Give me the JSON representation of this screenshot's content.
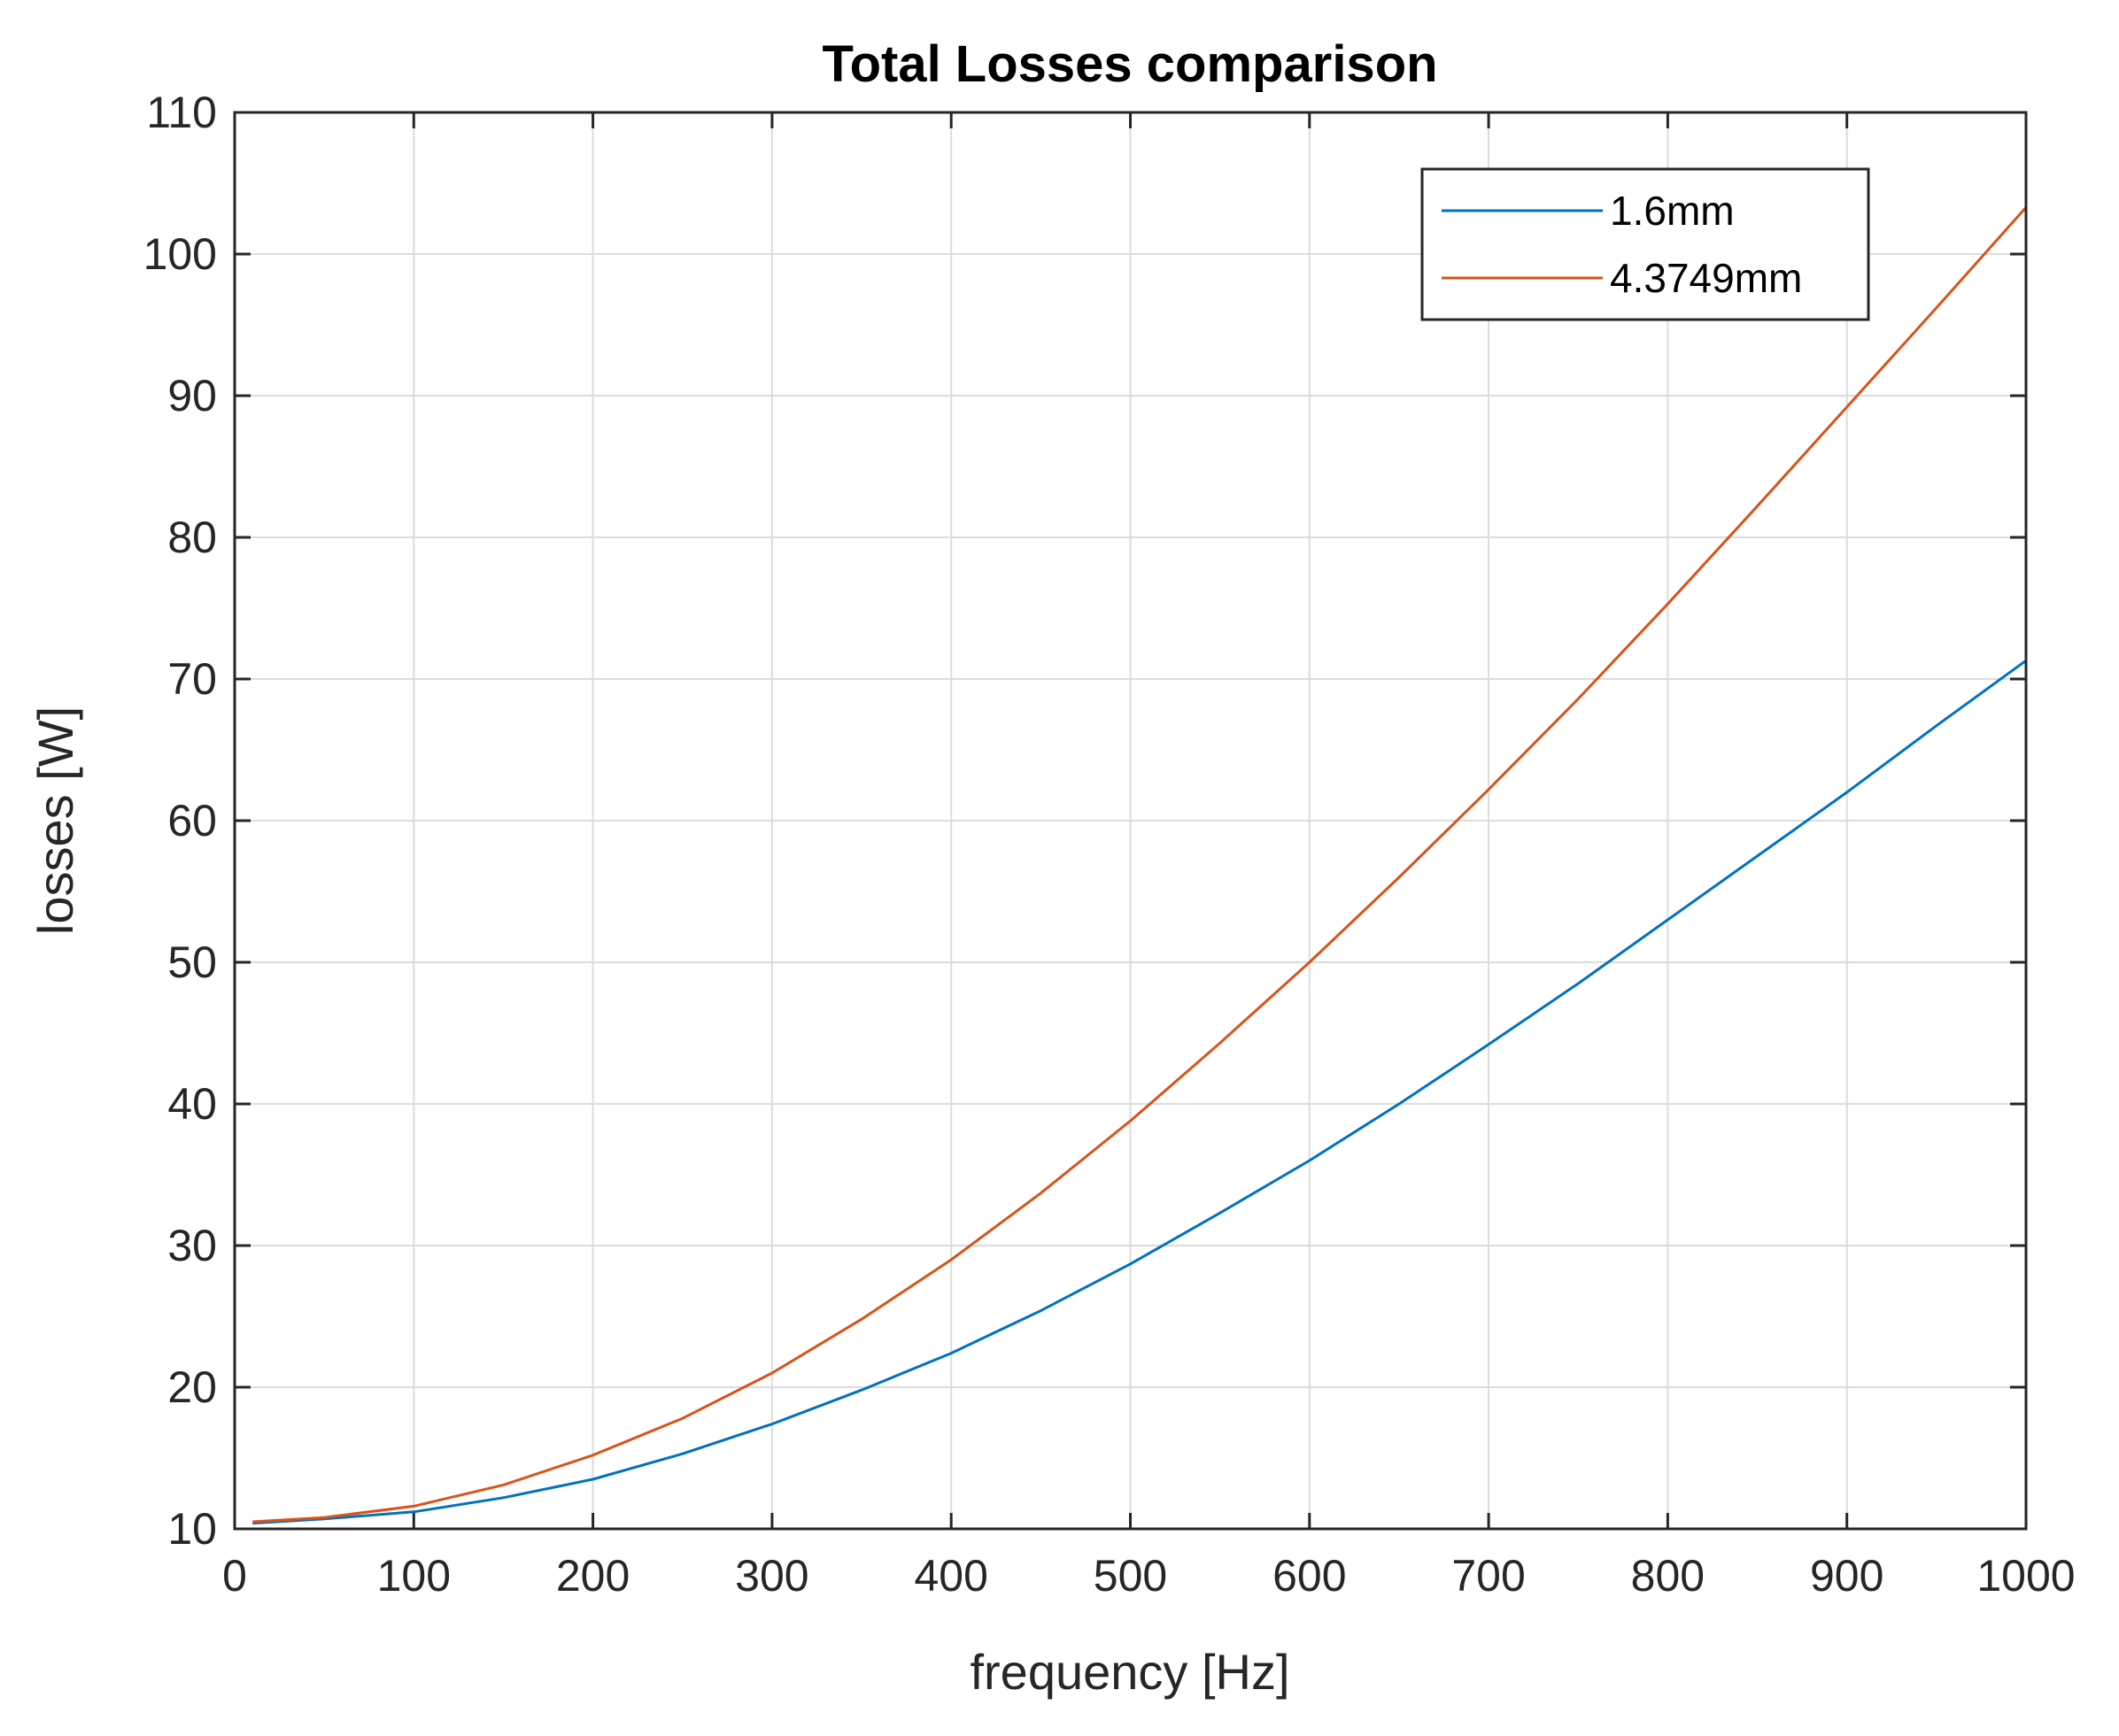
{
  "chart_data": {
    "type": "line",
    "title": "Total Losses comparison",
    "xlabel": "frequency [Hz]",
    "ylabel": "losses [W]",
    "xlim": [
      0,
      1000
    ],
    "ylim": [
      10,
      110
    ],
    "xticks": [
      0,
      100,
      200,
      300,
      400,
      500,
      600,
      700,
      800,
      900,
      1000
    ],
    "yticks": [
      10,
      20,
      30,
      40,
      50,
      60,
      70,
      80,
      90,
      100,
      110
    ],
    "grid": true,
    "legend_position": "top-right",
    "series": [
      {
        "name": "1.6mm",
        "color": "#0072bd",
        "x": [
          10,
          50,
          100,
          150,
          200,
          250,
          300,
          350,
          400,
          450,
          500,
          550,
          600,
          650,
          700,
          750,
          800,
          850,
          900,
          950,
          1000
        ],
        "y": [
          10.4,
          10.7,
          11.2,
          12.2,
          13.5,
          15.3,
          17.4,
          19.8,
          22.4,
          25.4,
          28.7,
          32.3,
          36.0,
          40.0,
          44.2,
          48.5,
          53.0,
          57.5,
          62.0,
          66.7,
          71.3
        ]
      },
      {
        "name": "4.3749mm",
        "color": "#d95319",
        "x": [
          10,
          50,
          100,
          150,
          200,
          250,
          300,
          350,
          400,
          450,
          500,
          550,
          600,
          650,
          700,
          750,
          800,
          850,
          900,
          950,
          1000
        ],
        "y": [
          10.5,
          10.8,
          11.6,
          13.1,
          15.2,
          17.8,
          21.0,
          24.8,
          29.0,
          33.7,
          38.8,
          44.3,
          50.0,
          56.0,
          62.2,
          68.6,
          75.3,
          82.2,
          89.2,
          96.2,
          103.3
        ]
      }
    ]
  }
}
